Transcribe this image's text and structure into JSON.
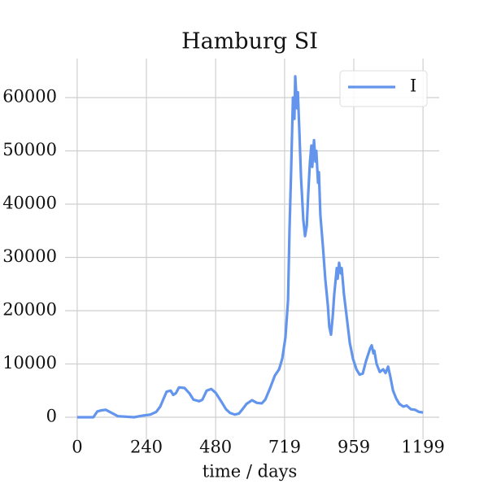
{
  "chart_data": {
    "type": "line",
    "title": "Hamburg SI",
    "x_label": "time / days",
    "x": [
      0,
      56,
      70,
      85,
      99,
      120,
      141,
      197,
      226,
      254,
      274,
      288,
      310,
      324,
      333,
      342,
      353,
      372,
      389,
      403,
      423,
      434,
      449,
      465,
      480,
      499,
      516,
      530,
      547,
      561,
      573,
      587,
      606,
      623,
      640,
      652,
      669,
      685,
      700,
      711,
      722,
      731,
      736,
      742,
      748,
      753,
      756,
      762,
      765,
      770,
      776,
      784,
      790,
      796,
      801,
      807,
      812,
      815,
      821,
      826,
      829,
      835,
      838,
      843,
      852,
      860,
      869,
      874,
      880,
      886,
      891,
      900,
      903,
      908,
      914,
      917,
      925,
      934,
      945,
      956,
      968,
      979,
      990,
      1001,
      1016,
      1021,
      1027,
      1030,
      1038,
      1049,
      1061,
      1069,
      1078,
      1086,
      1095,
      1106,
      1117,
      1131,
      1142,
      1157,
      1171,
      1185,
      1199
    ],
    "series": [
      {
        "name": "I",
        "color": "#6495ed",
        "values": [
          0,
          0,
          1100,
          1300,
          1400,
          800,
          200,
          0,
          300,
          500,
          1000,
          2000,
          4800,
          5000,
          4200,
          4500,
          5600,
          5500,
          4500,
          3300,
          3000,
          3300,
          5000,
          5300,
          4600,
          3000,
          1500,
          800,
          500,
          700,
          1500,
          2500,
          3200,
          2700,
          2600,
          3300,
          5500,
          7800,
          9000,
          11000,
          15000,
          22000,
          35000,
          47000,
          60000,
          56000,
          64000,
          58000,
          61000,
          54000,
          45000,
          37000,
          34000,
          36000,
          42000,
          48000,
          51000,
          47000,
          52000,
          48000,
          50000,
          44000,
          46000,
          38000,
          32000,
          26000,
          21000,
          17000,
          15500,
          19000,
          23000,
          28000,
          26000,
          29000,
          27000,
          28000,
          23000,
          19000,
          14000,
          11000,
          9000,
          8000,
          8200,
          10500,
          13000,
          13500,
          12000,
          12500,
          10000,
          8500,
          9000,
          8300,
          9500,
          7500,
          5000,
          3500,
          2500,
          2000,
          2200,
          1500,
          1400,
          1000,
          900
        ]
      }
    ],
    "xlim": [
      -42,
      1255
    ],
    "ylim": [
      -4122,
      67328
    ],
    "xticks": [
      0,
      240,
      480,
      719,
      959,
      1199
    ],
    "yticks": [
      0,
      10000,
      20000,
      30000,
      40000,
      50000,
      60000
    ],
    "grid": true,
    "legend": "upper right"
  }
}
